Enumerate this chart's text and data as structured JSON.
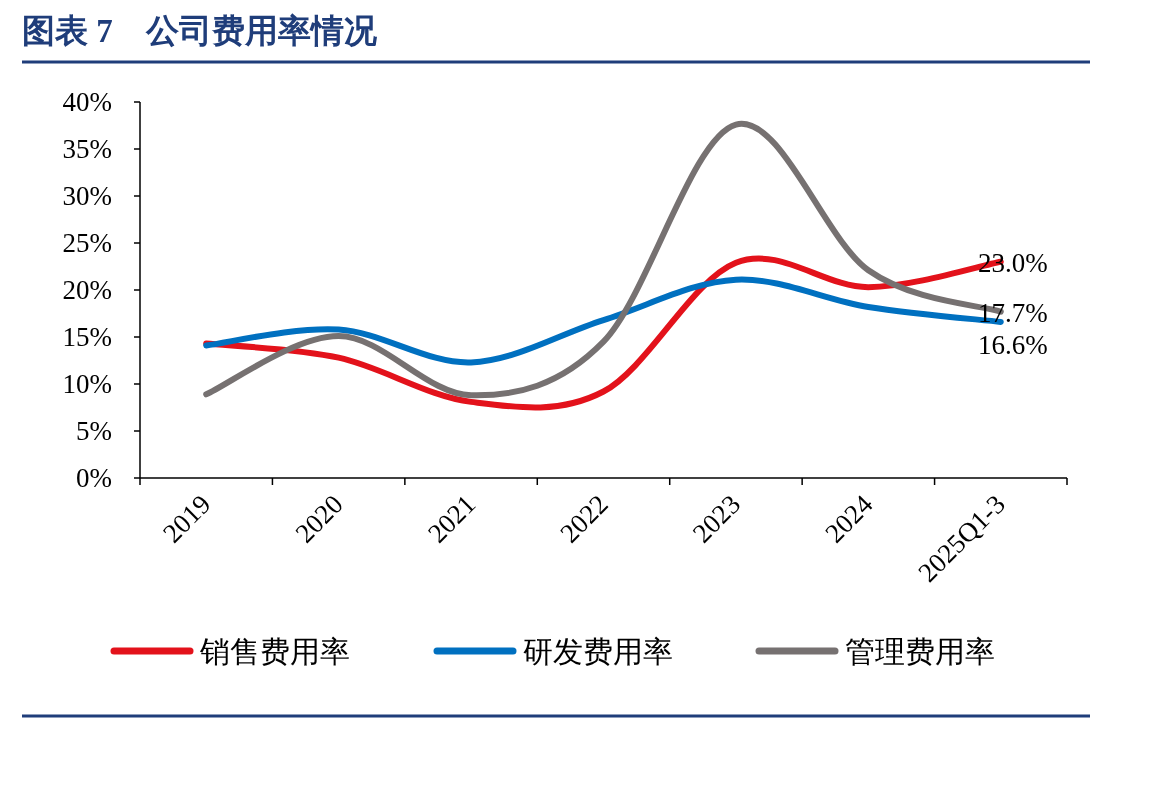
{
  "chart_data": {
    "type": "line",
    "title": "图表 7　公司费用率情况",
    "categories": [
      "2019",
      "2020",
      "2021",
      "2022",
      "2023",
      "2024",
      "2025Q1-3"
    ],
    "series": [
      {
        "name": "销售费用率",
        "color": "#e3121b",
        "values": [
          14.3,
          12.8,
          8.1,
          9.2,
          22.9,
          20.3,
          23.0
        ],
        "value_labels": [
          null,
          null,
          null,
          null,
          null,
          null,
          "23.0%"
        ]
      },
      {
        "name": "研发费用率",
        "color": "#0070c0",
        "values": [
          14.1,
          15.8,
          12.3,
          16.8,
          21.1,
          18.2,
          16.6
        ],
        "value_labels": [
          null,
          null,
          null,
          null,
          null,
          null,
          "16.6%"
        ]
      },
      {
        "name": "管理费用率",
        "color": "#767171",
        "values": [
          8.9,
          15.1,
          8.8,
          14.5,
          37.6,
          22.1,
          17.7
        ],
        "value_labels": [
          null,
          null,
          null,
          null,
          null,
          null,
          "17.7%"
        ]
      }
    ],
    "ylim": [
      0,
      40
    ],
    "yticks": [
      {
        "value": 0,
        "label": "0%"
      },
      {
        "value": 5,
        "label": "5%"
      },
      {
        "value": 10,
        "label": "10%"
      },
      {
        "value": 15,
        "label": "15%"
      },
      {
        "value": 20,
        "label": "20%"
      },
      {
        "value": 25,
        "label": "25%"
      },
      {
        "value": 30,
        "label": "30%"
      },
      {
        "value": 35,
        "label": "35%"
      },
      {
        "value": 40,
        "label": "40%"
      }
    ],
    "legend": "bottom"
  }
}
